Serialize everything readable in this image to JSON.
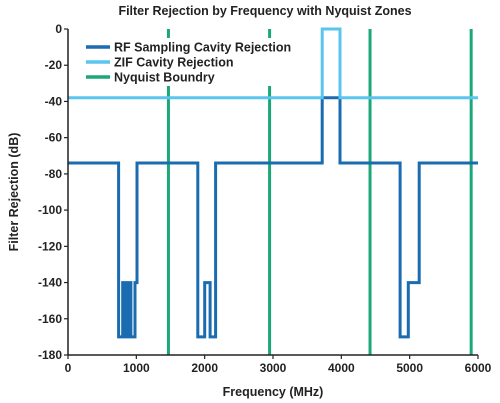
{
  "chart_data": {
    "type": "line",
    "title": "Filter Rejection by Frequency with Nyquist Zones",
    "xlabel": "Frequency (MHz)",
    "ylabel": "Filter Rejection (dB)",
    "xlim": [
      0,
      6000
    ],
    "ylim": [
      -180,
      0
    ],
    "xticks": [
      0,
      1000,
      2000,
      3000,
      4000,
      5000,
      6000
    ],
    "yticks": [
      0,
      -20,
      -40,
      -60,
      -80,
      -100,
      -120,
      -140,
      -160,
      -180
    ],
    "xtick_labels": [
      "0",
      "1000",
      "2000",
      "3000",
      "4000",
      "5000",
      "6000"
    ],
    "ytick_labels": [
      "0",
      "-20",
      "-40",
      "-60",
      "-80",
      "-100",
      "-120",
      "-140",
      "-160",
      "-180"
    ],
    "grid": false,
    "legend_position": "top-left",
    "series": [
      {
        "name": "RF Sampling Cavity Rejection",
        "color": "#1b6bb0",
        "x": [
          0,
          740,
          740,
          800,
          800,
          830,
          830,
          850,
          850,
          870,
          870,
          890,
          890,
          920,
          920,
          980,
          980,
          1010,
          1010,
          1900,
          1900,
          2000,
          2000,
          2080,
          2080,
          2160,
          2160,
          2200,
          2200,
          3720,
          3720,
          3730,
          3730,
          3980,
          3980,
          4860,
          4860,
          4980,
          4980,
          5020,
          5020,
          5140,
          5140,
          6000
        ],
        "y": [
          -74,
          -74,
          -170,
          -170,
          -140,
          -140,
          -170,
          -170,
          -140,
          -140,
          -170,
          -170,
          -140,
          -140,
          -170,
          -170,
          -140,
          -140,
          -74,
          -74,
          -170,
          -170,
          -140,
          -140,
          -170,
          -170,
          -74,
          -74,
          -74,
          -74,
          -38,
          -38,
          -38,
          -38,
          -74,
          -74,
          -170,
          -170,
          -140,
          -140,
          -140,
          -140,
          -74,
          -74
        ]
      },
      {
        "name": "ZIF Cavity Rejection",
        "color": "#5ac5ee",
        "x": [
          0,
          3720,
          3720,
          3980,
          3980,
          6000
        ],
        "y": [
          -38,
          -38,
          0,
          0,
          -38,
          -38
        ]
      },
      {
        "name": "Nyquist Boundry",
        "color": "#1aa87a",
        "x": [
          1470,
          2950,
          4420,
          5900
        ],
        "y": [
          0,
          0,
          0,
          0
        ]
      }
    ]
  }
}
